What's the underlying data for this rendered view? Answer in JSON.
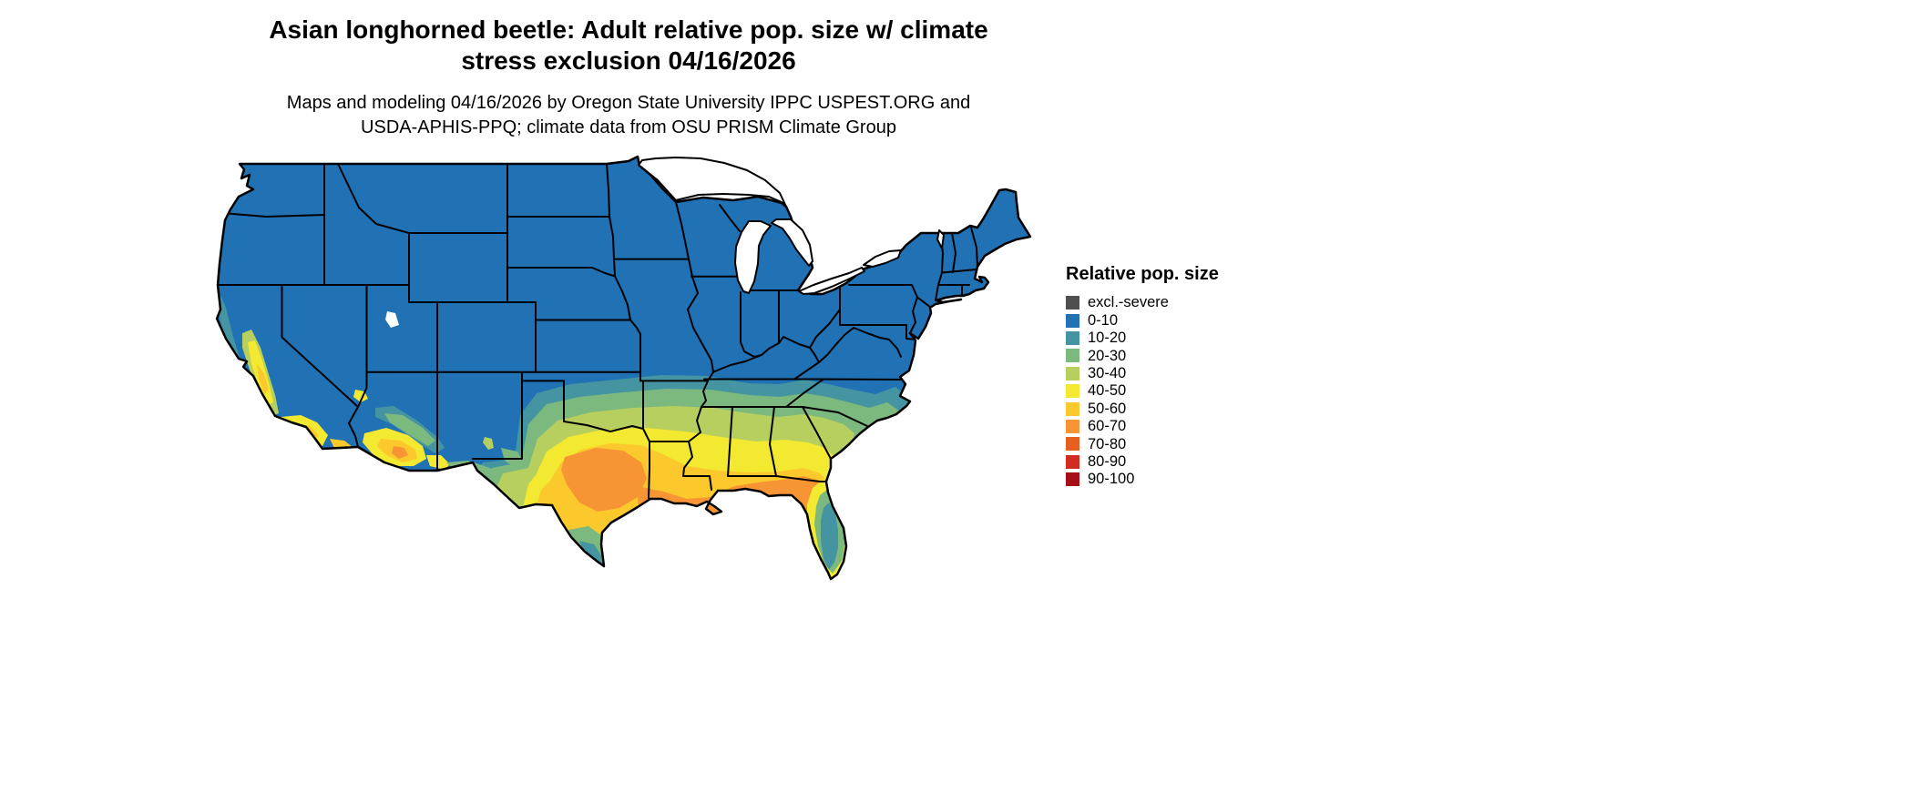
{
  "page": {
    "background_color": "#ffffff"
  },
  "header": {
    "title_line1": "Asian longhorned beetle: Adult relative pop. size w/ climate",
    "title_line2": "stress exclusion 04/16/2026",
    "subtitle_line1": "Maps and modeling 04/16/2026 by Oregon State University IPPC USPEST.ORG and",
    "subtitle_line2": "USDA-APHIS-PPQ; climate data from OSU PRISM Climate Group"
  },
  "map": {
    "region": "Continental United States",
    "border_color": "#000000",
    "water_color": "#ffffff",
    "base_category": "0-10",
    "high_population_areas": "Central and eastern Texas, southern Louisiana, southern Mississippi and Alabama, southern Georgia and the Florida panhandle (orange/gold 50-70); California Central Valley and southern California, central Arizona (yellow/gold 40-60)",
    "moderate_areas": "Band across Oklahoma, Arkansas, Tennessee, northern Mississippi/Alabama/Georgia, the Carolinas coastal plain and the Florida peninsula (teal/green 10-40)",
    "low_population_areas": "Northern, mountain, midwestern and northeastern states shown as 0-10 (blue)"
  },
  "legend": {
    "title": "Relative pop. size",
    "items": [
      {
        "key": "excl",
        "label": "excl.-severe",
        "color": "#4f4f4f"
      },
      {
        "key": "0-10",
        "label": "0-10",
        "color": "#2171b5"
      },
      {
        "key": "10-20",
        "label": "10-20",
        "color": "#4495a1"
      },
      {
        "key": "20-30",
        "label": "20-30",
        "color": "#7cb97e"
      },
      {
        "key": "30-40",
        "label": "30-40",
        "color": "#b6cf5f"
      },
      {
        "key": "40-50",
        "label": "40-50",
        "color": "#f2e930"
      },
      {
        "key": "50-60",
        "label": "50-60",
        "color": "#fbc92c"
      },
      {
        "key": "60-70",
        "label": "60-70",
        "color": "#f79433"
      },
      {
        "key": "70-80",
        "label": "70-80",
        "color": "#e65f1e"
      },
      {
        "key": "80-90",
        "label": "80-90",
        "color": "#d32b20"
      },
      {
        "key": "90-100",
        "label": "90-100",
        "color": "#a50f15"
      }
    ]
  }
}
